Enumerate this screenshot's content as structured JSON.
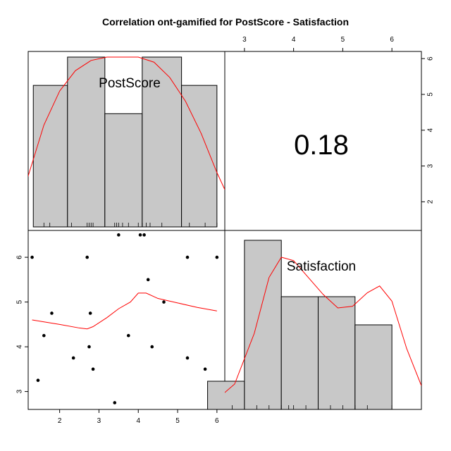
{
  "chart_data": {
    "type": "scatter-matrix",
    "title": "Correlation ont-gamified for PostScore - Satisfaction",
    "variables": [
      "PostScore",
      "Satisfaction"
    ],
    "correlation": "0.18",
    "line_color": "#ff0000",
    "bar_color": "#c8c8c8",
    "postscore_axis": {
      "ticks": [
        "2",
        "3",
        "4",
        "5",
        "6"
      ],
      "range": [
        1.2,
        6.2
      ]
    },
    "satisfaction_axis": {
      "ticks": [
        "3",
        "4",
        "5",
        "6"
      ],
      "range": [
        2.6,
        6.6
      ]
    },
    "postscore_hist": {
      "bins": [
        [
          1.33,
          2.2
        ],
        [
          2.2,
          3.15
        ],
        [
          3.15,
          4.1
        ],
        [
          4.1,
          5.1
        ],
        [
          5.1,
          6.0
        ]
      ],
      "counts": [
        5,
        6,
        4,
        6,
        5
      ],
      "rug": [
        1.6,
        1.75,
        2.3,
        2.7,
        2.75,
        2.8,
        2.85,
        3.4,
        3.45,
        3.5,
        3.6,
        3.75,
        4.0,
        4.1,
        4.2,
        4.3,
        4.6,
        5.3,
        5.7,
        6.0
      ]
    },
    "satisfaction_hist": {
      "bins": [
        [
          2.25,
          3.0
        ],
        [
          3.0,
          3.75
        ],
        [
          3.75,
          4.5
        ],
        [
          4.5,
          5.25
        ],
        [
          5.25,
          6.0
        ]
      ],
      "counts": [
        1,
        6,
        4,
        4,
        3
      ],
      "rug": [
        2.75,
        3.25,
        3.5,
        3.75,
        3.9,
        4.0,
        4.25,
        4.5,
        4.75,
        5.0,
        5.25,
        5.5,
        6.0
      ]
    },
    "scatter_points": [
      {
        "x": 1.3,
        "y": 6.0
      },
      {
        "x": 1.45,
        "y": 3.25
      },
      {
        "x": 1.6,
        "y": 4.25
      },
      {
        "x": 1.8,
        "y": 4.75
      },
      {
        "x": 2.35,
        "y": 3.75
      },
      {
        "x": 2.7,
        "y": 6.0
      },
      {
        "x": 2.75,
        "y": 4.0
      },
      {
        "x": 2.78,
        "y": 4.75
      },
      {
        "x": 2.85,
        "y": 3.5
      },
      {
        "x": 3.4,
        "y": 2.75
      },
      {
        "x": 3.5,
        "y": 6.5
      },
      {
        "x": 3.75,
        "y": 4.25
      },
      {
        "x": 4.05,
        "y": 6.5
      },
      {
        "x": 4.15,
        "y": 6.5
      },
      {
        "x": 4.25,
        "y": 5.5
      },
      {
        "x": 4.35,
        "y": 4.0
      },
      {
        "x": 4.65,
        "y": 5.0
      },
      {
        "x": 5.25,
        "y": 3.75
      },
      {
        "x": 5.25,
        "y": 6.0
      },
      {
        "x": 5.7,
        "y": 3.5
      },
      {
        "x": 6.0,
        "y": 6.0
      }
    ],
    "smooth_line": [
      {
        "x": 1.3,
        "y": 4.6
      },
      {
        "x": 2.0,
        "y": 4.5
      },
      {
        "x": 2.5,
        "y": 4.42
      },
      {
        "x": 2.7,
        "y": 4.4
      },
      {
        "x": 2.85,
        "y": 4.45
      },
      {
        "x": 3.2,
        "y": 4.65
      },
      {
        "x": 3.5,
        "y": 4.85
      },
      {
        "x": 3.8,
        "y": 5.0
      },
      {
        "x": 4.0,
        "y": 5.2
      },
      {
        "x": 4.2,
        "y": 5.2
      },
      {
        "x": 4.5,
        "y": 5.08
      },
      {
        "x": 5.0,
        "y": 4.98
      },
      {
        "x": 5.5,
        "y": 4.88
      },
      {
        "x": 6.0,
        "y": 4.8
      }
    ],
    "postscore_density": [
      {
        "x": 0.8,
        "y": 0.1
      },
      {
        "x": 1.2,
        "y": 0.3
      },
      {
        "x": 1.6,
        "y": 0.6
      },
      {
        "x": 2.0,
        "y": 0.8
      },
      {
        "x": 2.4,
        "y": 0.92
      },
      {
        "x": 2.8,
        "y": 0.98
      },
      {
        "x": 3.2,
        "y": 1.0
      },
      {
        "x": 3.6,
        "y": 1.0
      },
      {
        "x": 4.0,
        "y": 1.0
      },
      {
        "x": 4.4,
        "y": 0.97
      },
      {
        "x": 4.8,
        "y": 0.88
      },
      {
        "x": 5.2,
        "y": 0.74
      },
      {
        "x": 5.6,
        "y": 0.55
      },
      {
        "x": 6.0,
        "y": 0.32
      },
      {
        "x": 6.2,
        "y": 0.22
      }
    ],
    "satisfaction_density": [
      {
        "x": 2.4,
        "y": 0.05
      },
      {
        "x": 2.8,
        "y": 0.15
      },
      {
        "x": 3.2,
        "y": 0.45
      },
      {
        "x": 3.5,
        "y": 0.78
      },
      {
        "x": 3.75,
        "y": 0.9
      },
      {
        "x": 4.0,
        "y": 0.88
      },
      {
        "x": 4.3,
        "y": 0.78
      },
      {
        "x": 4.6,
        "y": 0.68
      },
      {
        "x": 4.9,
        "y": 0.6
      },
      {
        "x": 5.2,
        "y": 0.61
      },
      {
        "x": 5.5,
        "y": 0.69
      },
      {
        "x": 5.75,
        "y": 0.73
      },
      {
        "x": 6.0,
        "y": 0.64
      },
      {
        "x": 6.3,
        "y": 0.36
      },
      {
        "x": 6.6,
        "y": 0.14
      }
    ]
  }
}
